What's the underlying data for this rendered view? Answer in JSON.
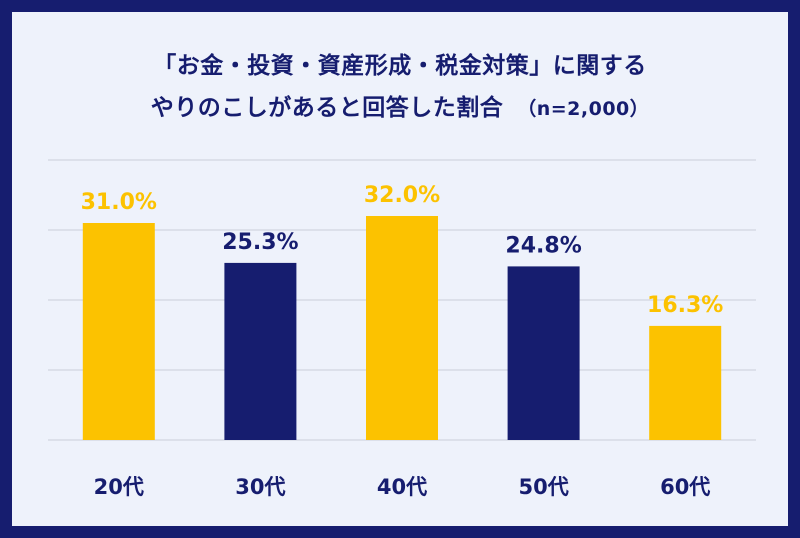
{
  "title_line1": "「お金・投資・資産形成・税金対策」に関する",
  "title_line2": "やりのこしがあると回答した割合",
  "sample_note": "（n=2,000）",
  "colors": {
    "background": "#161d6f",
    "panel": "#eef2fb",
    "highlight": "#fcc200",
    "normal": "#161d6f",
    "grid": "#c9cdd8"
  },
  "chart_data": {
    "type": "bar",
    "categories": [
      "20代",
      "30代",
      "40代",
      "50代",
      "60代"
    ],
    "values": [
      31.0,
      25.3,
      32.0,
      24.8,
      16.3
    ],
    "value_labels": [
      "31.0%",
      "25.3%",
      "32.0%",
      "24.8%",
      "16.3%"
    ],
    "highlighted": [
      true,
      false,
      true,
      false,
      true
    ],
    "ylim": [
      0,
      40
    ],
    "grid": true,
    "legend": "none"
  }
}
